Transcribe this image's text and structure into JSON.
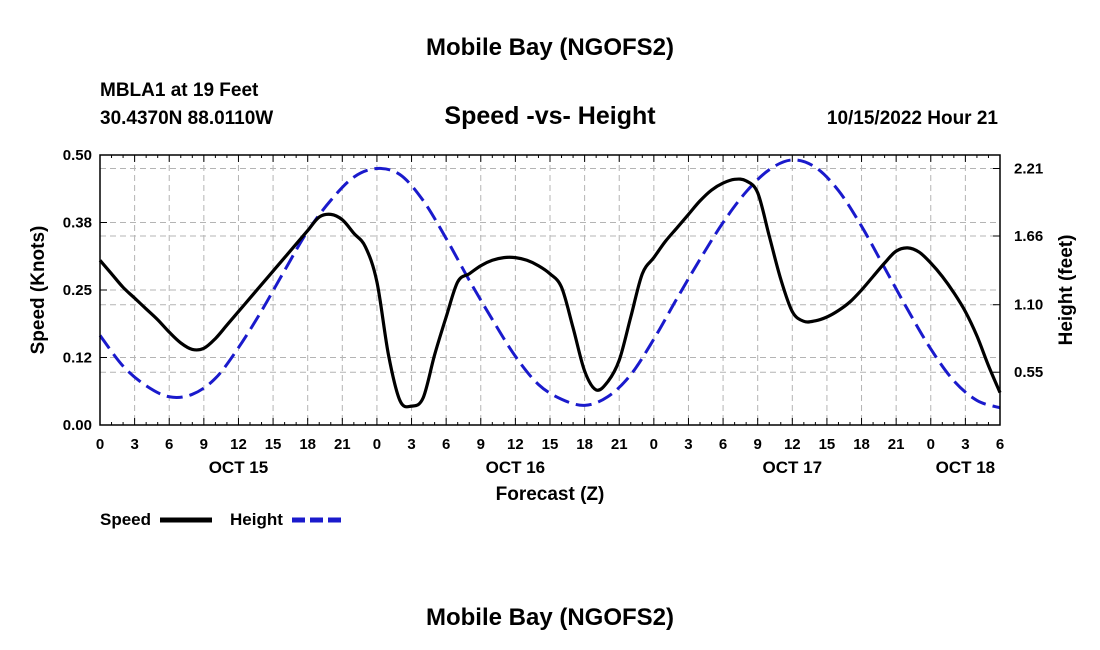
{
  "header": {
    "title": "Mobile Bay (NGOFS2)",
    "station": "MBLA1 at 19 Feet",
    "coords": "30.4370N  88.0110W",
    "subtitle": "Speed -vs- Height",
    "datetime": "10/15/2022 Hour 21"
  },
  "footer": {
    "title": "Mobile Bay (NGOFS2)"
  },
  "colors": {
    "speed": "#000000",
    "height": "#1a1acc",
    "grid": "#b4b4b4"
  },
  "chart_data": {
    "type": "line",
    "xlabel": "Forecast (Z)",
    "ylabel": "Speed (Knots)",
    "y2label": "Height (feet)",
    "xlim": [
      0,
      78
    ],
    "ylim": [
      0,
      0.5
    ],
    "y2lim": [
      0.12,
      2.32
    ],
    "yticks": [
      "0.00",
      "0.12",
      "0.25",
      "0.38",
      "0.50"
    ],
    "yticks_values": [
      0,
      0.125,
      0.25,
      0.375,
      0.5
    ],
    "y2ticks": [
      "0.55",
      "1.10",
      "1.66",
      "2.21"
    ],
    "y2ticks_values": [
      0.55,
      1.1,
      1.66,
      2.21
    ],
    "xticks": [
      "0",
      "3",
      "6",
      "9",
      "12",
      "15",
      "18",
      "21",
      "0",
      "3",
      "6",
      "9",
      "12",
      "15",
      "18",
      "21",
      "0",
      "3",
      "6",
      "9",
      "12",
      "15",
      "18",
      "21",
      "0",
      "3",
      "6"
    ],
    "xticks_values": [
      0,
      3,
      6,
      9,
      12,
      15,
      18,
      21,
      24,
      27,
      30,
      33,
      36,
      39,
      42,
      45,
      48,
      51,
      54,
      57,
      60,
      63,
      66,
      69,
      72,
      75,
      78
    ],
    "day_labels": [
      {
        "label": "OCT 15",
        "x": 12
      },
      {
        "label": "OCT 16",
        "x": 36
      },
      {
        "label": "OCT 17",
        "x": 60
      },
      {
        "label": "OCT 18",
        "x": 75
      }
    ],
    "grid": true,
    "legend": "bottom-left",
    "legend_items": [
      {
        "label": "Speed",
        "style": "solid"
      },
      {
        "label": "Height",
        "style": "dashed"
      }
    ],
    "series": [
      {
        "name": "Speed",
        "axis": "left",
        "x": [
          0,
          1,
          2,
          3,
          4,
          5,
          6,
          7,
          8,
          9,
          10,
          11,
          12,
          13,
          14,
          15,
          16,
          17,
          18,
          19,
          20,
          21,
          22,
          23,
          24,
          25,
          26,
          27,
          28,
          29,
          30,
          31,
          32,
          33,
          34,
          35,
          36,
          37,
          38,
          39,
          40,
          41,
          42,
          43,
          44,
          45,
          46,
          47,
          48,
          49,
          50,
          51,
          52,
          53,
          54,
          55,
          56,
          57,
          58,
          59,
          60,
          61,
          62,
          63,
          64,
          65,
          66,
          67,
          68,
          69,
          70,
          71,
          72,
          73,
          74,
          75,
          76,
          77,
          78
        ],
        "values": [
          0.305,
          0.28,
          0.255,
          0.235,
          0.215,
          0.195,
          0.172,
          0.152,
          0.14,
          0.142,
          0.16,
          0.185,
          0.21,
          0.235,
          0.26,
          0.285,
          0.31,
          0.335,
          0.36,
          0.385,
          0.39,
          0.38,
          0.355,
          0.33,
          0.265,
          0.13,
          0.045,
          0.035,
          0.05,
          0.13,
          0.2,
          0.265,
          0.28,
          0.295,
          0.305,
          0.31,
          0.31,
          0.305,
          0.295,
          0.28,
          0.255,
          0.18,
          0.1,
          0.065,
          0.08,
          0.12,
          0.2,
          0.28,
          0.31,
          0.34,
          0.365,
          0.39,
          0.415,
          0.435,
          0.448,
          0.455,
          0.452,
          0.43,
          0.35,
          0.27,
          0.21,
          0.192,
          0.193,
          0.2,
          0.212,
          0.228,
          0.25,
          0.275,
          0.3,
          0.322,
          0.328,
          0.32,
          0.3,
          0.275,
          0.245,
          0.21,
          0.165,
          0.11,
          0.06
        ]
      },
      {
        "name": "Height",
        "axis": "right",
        "x": [
          0,
          2,
          4,
          6,
          8,
          10,
          12,
          14,
          16,
          18,
          20,
          22,
          24,
          26,
          28,
          30,
          32,
          34,
          36,
          38,
          40,
          42,
          44,
          46,
          48,
          50,
          52,
          54,
          56,
          58,
          60,
          62,
          64,
          66,
          68,
          70,
          72,
          74,
          76,
          78
        ],
        "values": [
          0.85,
          0.6,
          0.44,
          0.35,
          0.37,
          0.5,
          0.75,
          1.05,
          1.38,
          1.7,
          1.95,
          2.14,
          2.21,
          2.16,
          1.95,
          1.64,
          1.3,
          0.98,
          0.68,
          0.45,
          0.33,
          0.28,
          0.35,
          0.53,
          0.82,
          1.15,
          1.47,
          1.77,
          2.02,
          2.2,
          2.28,
          2.22,
          2.03,
          1.74,
          1.4,
          1.06,
          0.74,
          0.48,
          0.32,
          0.26
        ]
      }
    ]
  }
}
